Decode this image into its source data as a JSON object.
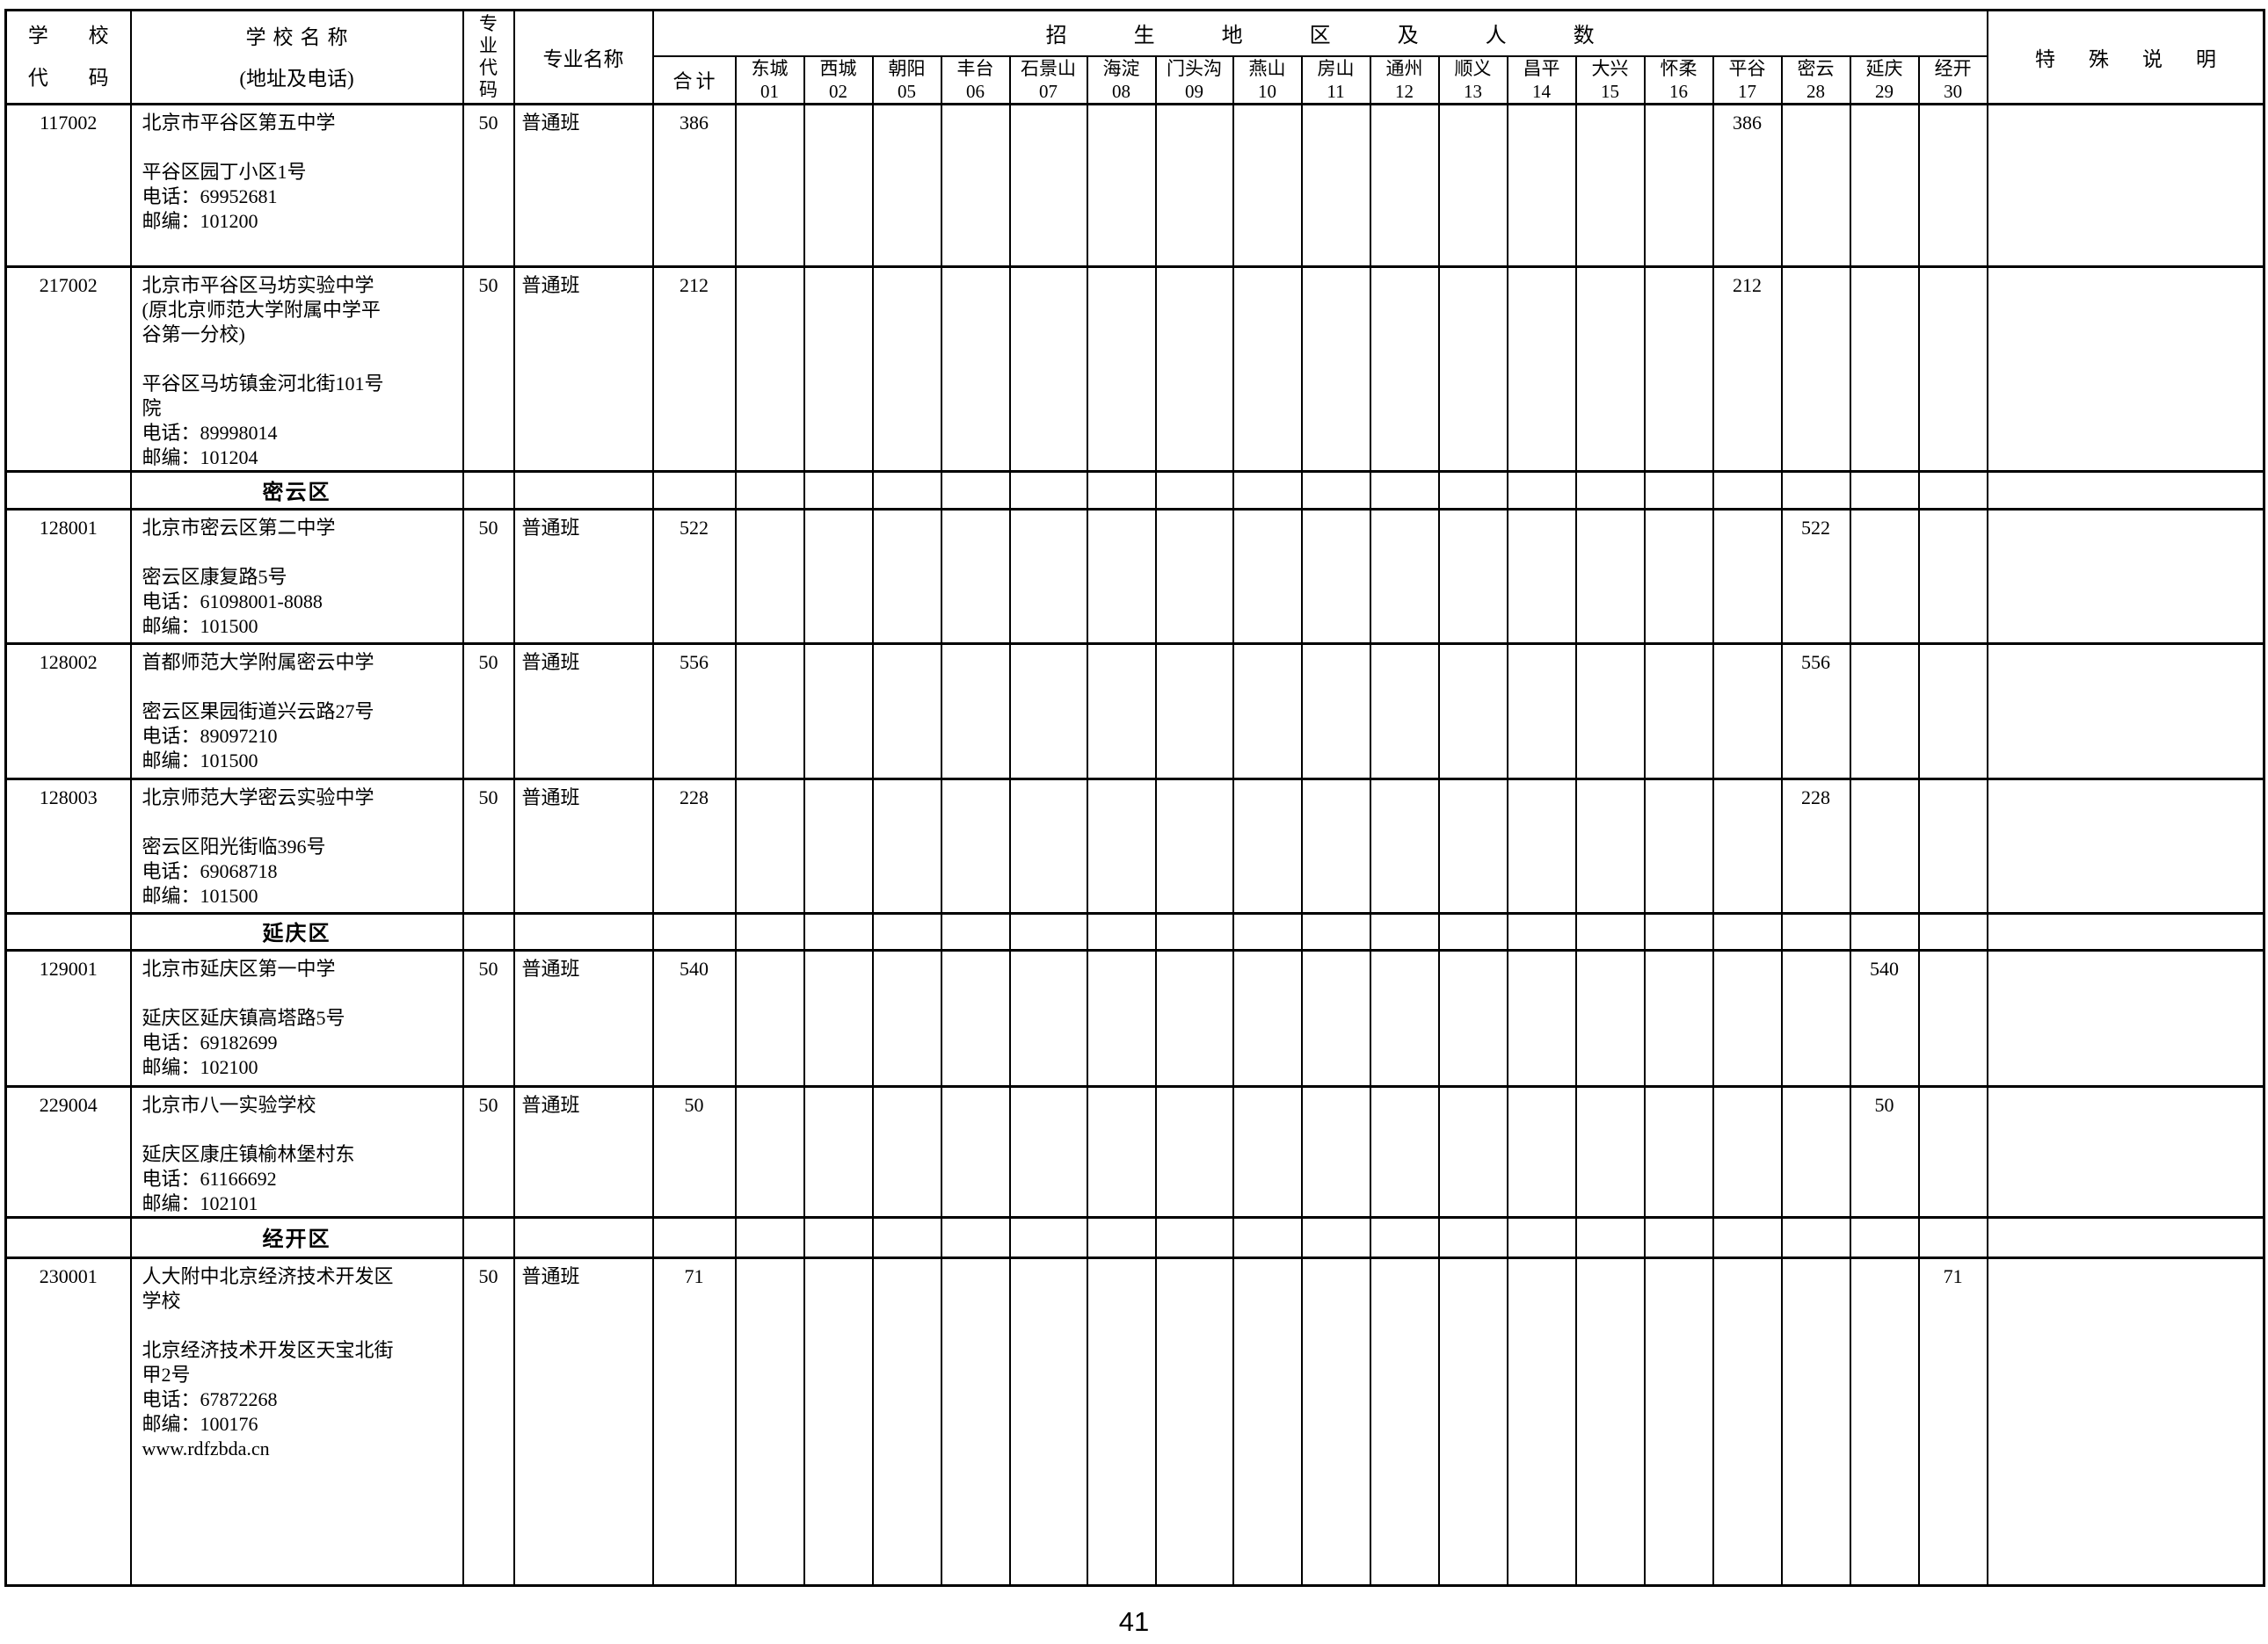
{
  "page": {
    "number": "41"
  },
  "table": {
    "header": {
      "school_code_lines": [
        "学 校",
        "代 码"
      ],
      "school_name_line1": "学校名称",
      "school_name_line2": "(地址及电话)",
      "major_code_chars": [
        "专",
        "业",
        "代",
        "码"
      ],
      "major_name": "专业名称",
      "banner": "招生地区及人数",
      "total": "合计",
      "special": "特殊说明",
      "districts": [
        {
          "name": "东城",
          "code": "01"
        },
        {
          "name": "西城",
          "code": "02"
        },
        {
          "name": "朝阳",
          "code": "05"
        },
        {
          "name": "丰台",
          "code": "06"
        },
        {
          "name": "石景山",
          "code": "07"
        },
        {
          "name": "海淀",
          "code": "08"
        },
        {
          "name": "门头沟",
          "code": "09"
        },
        {
          "name": "燕山",
          "code": "10"
        },
        {
          "name": "房山",
          "code": "11"
        },
        {
          "name": "通州",
          "code": "12"
        },
        {
          "name": "顺义",
          "code": "13"
        },
        {
          "name": "昌平",
          "code": "14"
        },
        {
          "name": "大兴",
          "code": "15"
        },
        {
          "name": "怀柔",
          "code": "16"
        },
        {
          "name": "平谷",
          "code": "17"
        },
        {
          "name": "密云",
          "code": "28"
        },
        {
          "name": "延庆",
          "code": "29"
        },
        {
          "name": "经开",
          "code": "30"
        }
      ]
    },
    "rows": [
      {
        "type": "school",
        "code": "117002",
        "name_lines": [
          "北京市平谷区第五中学"
        ],
        "addr_lines": [
          "平谷区园丁小区1号"
        ],
        "phone": "电话：69952681",
        "postal": "邮编：101200",
        "major_code": "50",
        "major_name": "普通班",
        "total": "386",
        "dist": {
          "平谷": "386"
        }
      },
      {
        "type": "school",
        "code": "217002",
        "name_lines": [
          "北京市平谷区马坊实验中学",
          "(原北京师范大学附属中学平",
          "谷第一分校)"
        ],
        "addr_lines": [
          "平谷区马坊镇金河北街101号",
          "院"
        ],
        "phone": "电话：89998014",
        "postal": "邮编：101204",
        "major_code": "50",
        "major_name": "普通班",
        "total": "212",
        "dist": {
          "平谷": "212"
        }
      },
      {
        "type": "section",
        "label": "密云区"
      },
      {
        "type": "school",
        "code": "128001",
        "name_lines": [
          "北京市密云区第二中学"
        ],
        "addr_lines": [
          "密云区康复路5号"
        ],
        "phone": "电话：61098001-8088",
        "postal": "邮编：101500",
        "major_code": "50",
        "major_name": "普通班",
        "total": "522",
        "dist": {
          "密云": "522"
        }
      },
      {
        "type": "school",
        "code": "128002",
        "name_lines": [
          "首都师范大学附属密云中学"
        ],
        "addr_lines": [
          "密云区果园街道兴云路27号"
        ],
        "phone": "电话：89097210",
        "postal": "邮编：101500",
        "major_code": "50",
        "major_name": "普通班",
        "total": "556",
        "dist": {
          "密云": "556"
        }
      },
      {
        "type": "school",
        "code": "128003",
        "name_lines": [
          "北京师范大学密云实验中学"
        ],
        "addr_lines": [
          "密云区阳光街临396号"
        ],
        "phone": "电话：69068718",
        "postal": "邮编：101500",
        "major_code": "50",
        "major_name": "普通班",
        "total": "228",
        "dist": {
          "密云": "228"
        }
      },
      {
        "type": "section",
        "label": "延庆区"
      },
      {
        "type": "school",
        "code": "129001",
        "name_lines": [
          "北京市延庆区第一中学"
        ],
        "addr_lines": [
          "延庆区延庆镇高塔路5号"
        ],
        "phone": "电话：69182699",
        "postal": "邮编：102100",
        "major_code": "50",
        "major_name": "普通班",
        "total": "540",
        "dist": {
          "延庆": "540"
        }
      },
      {
        "type": "school",
        "code": "229004",
        "name_lines": [
          "北京市八一实验学校"
        ],
        "addr_lines": [
          "延庆区康庄镇榆林堡村东"
        ],
        "phone": "电话：61166692",
        "postal": "邮编：102101",
        "major_code": "50",
        "major_name": "普通班",
        "total": "50",
        "dist": {
          "延庆": "50"
        }
      },
      {
        "type": "section",
        "label": "经开区"
      },
      {
        "type": "school",
        "code": "230001",
        "name_lines": [
          "人大附中北京经济技术开发区",
          "学校"
        ],
        "addr_lines": [
          "北京经济技术开发区天宝北街",
          "甲2号"
        ],
        "phone": "电话：67872268",
        "postal": "邮编：100176",
        "website": "www.rdfzbda.cn",
        "major_code": "50",
        "major_name": "普通班",
        "total": "71",
        "dist": {
          "经开": "71"
        }
      }
    ]
  }
}
